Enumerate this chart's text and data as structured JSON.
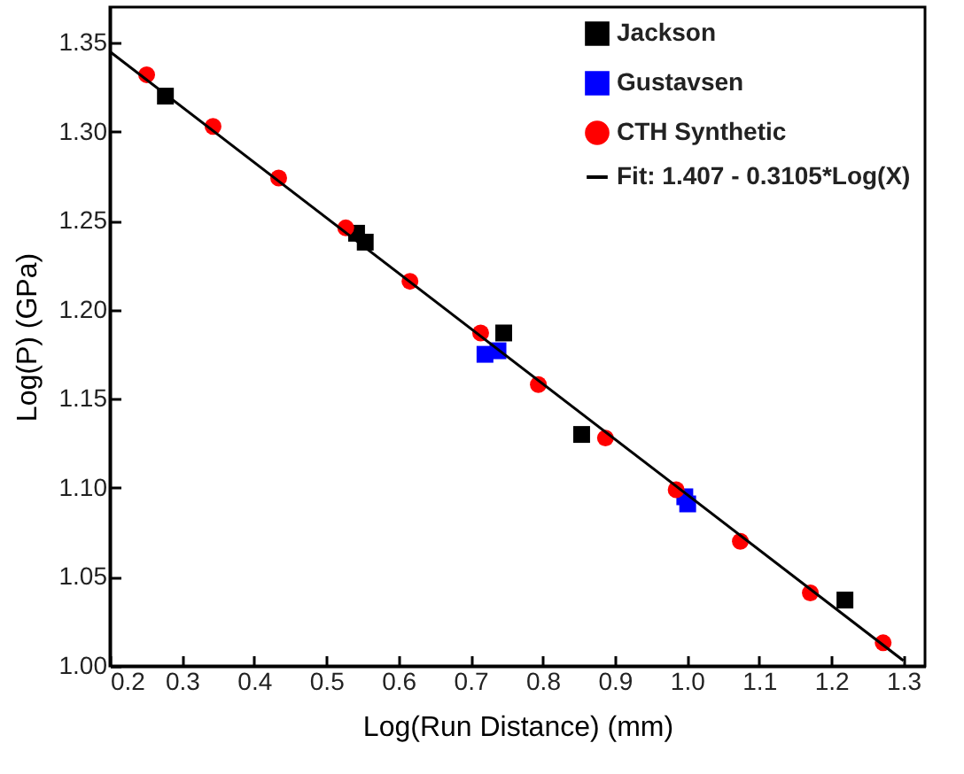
{
  "chart_data": {
    "type": "scatter",
    "xlabel": "Log(Run Distance) (mm)",
    "ylabel": "Log(P) (GPa)",
    "xlim": [
      0.2,
      1.33
    ],
    "ylim": [
      1.0,
      1.37
    ],
    "xticks": [
      {
        "value": 0.2,
        "label": "0.2"
      },
      {
        "value": 0.3,
        "label": "0.3"
      },
      {
        "value": 0.4,
        "label": "0.4"
      },
      {
        "value": 0.5,
        "label": "0.5"
      },
      {
        "value": 0.6,
        "label": "0.6"
      },
      {
        "value": 0.7,
        "label": "0.7"
      },
      {
        "value": 0.8,
        "label": "0.8"
      },
      {
        "value": 0.9,
        "label": "0.9"
      },
      {
        "value": 1.0,
        "label": "1.0"
      },
      {
        "value": 1.1,
        "label": "1.1"
      },
      {
        "value": 1.2,
        "label": "1.2"
      },
      {
        "value": 1.3,
        "label": "1.3"
      }
    ],
    "yticks": [
      {
        "value": 1.0,
        "label": "1.00"
      },
      {
        "value": 1.05,
        "label": "1.05"
      },
      {
        "value": 1.1,
        "label": "1.10"
      },
      {
        "value": 1.15,
        "label": "1.15"
      },
      {
        "value": 1.2,
        "label": "1.20"
      },
      {
        "value": 1.25,
        "label": "1.25"
      },
      {
        "value": 1.3,
        "label": "1.30"
      },
      {
        "value": 1.35,
        "label": "1.35"
      }
    ],
    "grid": false,
    "legend": "top right",
    "series": [
      {
        "name": "Jackson",
        "color": "#000000",
        "marker": "square",
        "x": [
          0.277,
          0.542,
          0.554,
          0.746,
          0.854,
          1.219
        ],
        "values": [
          1.32,
          1.243,
          1.238,
          1.187,
          1.13,
          1.037
        ]
      },
      {
        "name": "Gustavsen",
        "color": "#0000ff",
        "marker": "square",
        "x": [
          0.72,
          0.738,
          0.997,
          1.001
        ],
        "values": [
          1.175,
          1.177,
          1.095,
          1.091
        ]
      },
      {
        "name": "CTH Synthetic",
        "color": "#ff0000",
        "marker": "circle",
        "x": [
          0.251,
          0.343,
          0.434,
          0.527,
          0.616,
          0.714,
          0.794,
          0.887,
          0.985,
          1.074,
          1.171,
          1.272
        ],
        "values": [
          1.332,
          1.303,
          1.274,
          1.246,
          1.216,
          1.187,
          1.158,
          1.128,
          1.099,
          1.07,
          1.041,
          1.013
        ]
      },
      {
        "name": "Fit: 1.407 - 0.3105*Log(X)",
        "type": "line",
        "color": "#000000",
        "marker": "none",
        "line_style": "solid",
        "x": [
          0.2,
          1.3
        ],
        "values": [
          1.345,
          1.003
        ]
      }
    ]
  }
}
